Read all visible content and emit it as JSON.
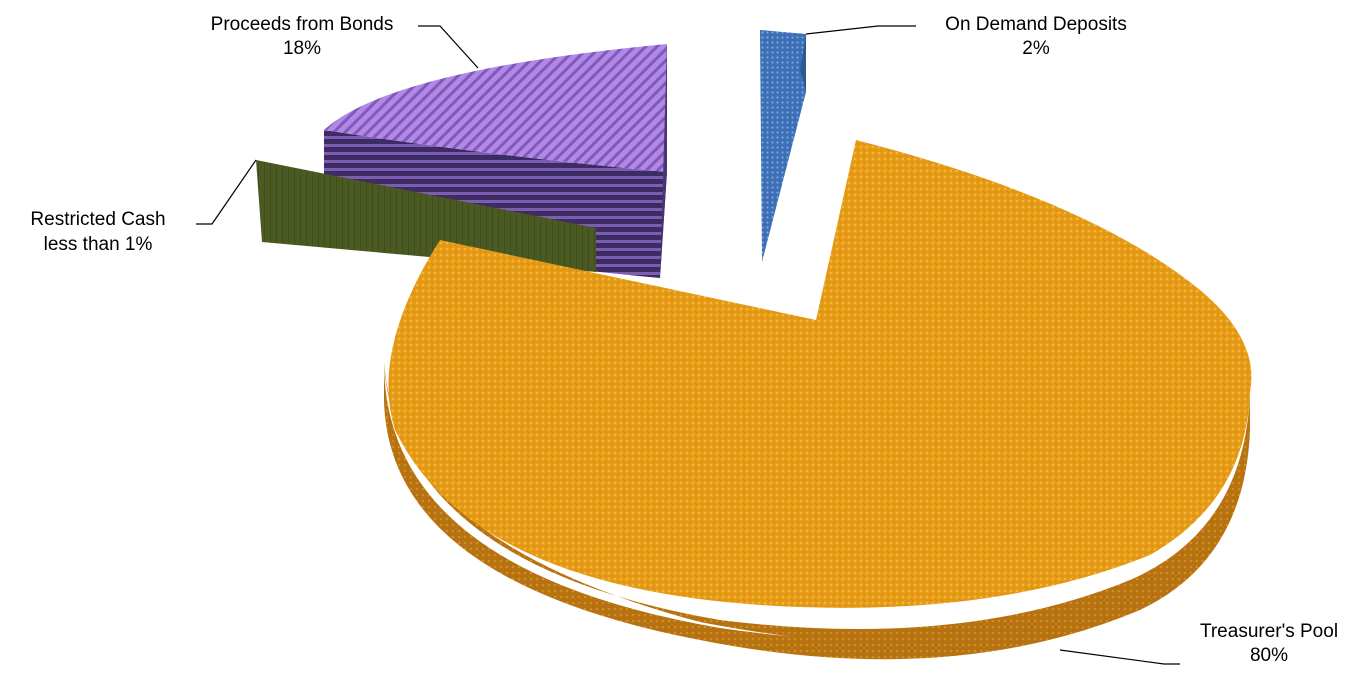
{
  "chart_data": {
    "type": "pie",
    "title": "",
    "slices": [
      {
        "label": "Treasurer's Pool",
        "value_label": "80%",
        "value": 80,
        "color": "#E79A12"
      },
      {
        "label": "Restricted Cash",
        "value_label": "less than 1%",
        "value": 0.5,
        "color": "#4A5A22"
      },
      {
        "label": "Proceeds from Bonds",
        "value_label": "18%",
        "value": 18,
        "color": "#9B6FD0"
      },
      {
        "label": "On Demand Deposits",
        "value_label": "2%",
        "value": 2,
        "color": "#3F74BD"
      }
    ],
    "legend": "none",
    "style": "3d-exploded"
  }
}
